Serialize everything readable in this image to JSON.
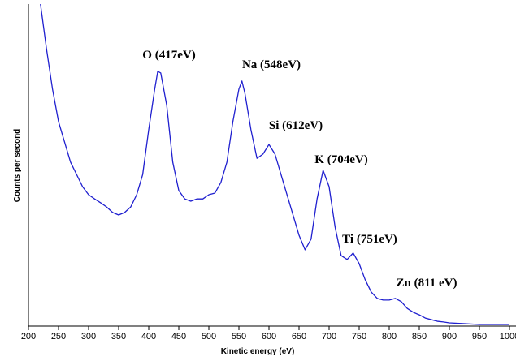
{
  "chart_data": {
    "type": "line",
    "xlabel": "Kinetic energy (eV)",
    "ylabel": "Counts per second",
    "x": [
      220,
      230,
      240,
      250,
      260,
      270,
      280,
      290,
      300,
      310,
      320,
      330,
      340,
      350,
      360,
      370,
      380,
      390,
      400,
      410,
      415,
      420,
      430,
      440,
      450,
      460,
      470,
      480,
      490,
      500,
      510,
      520,
      530,
      540,
      550,
      555,
      560,
      570,
      580,
      590,
      600,
      610,
      620,
      630,
      640,
      650,
      660,
      670,
      680,
      690,
      700,
      710,
      720,
      730,
      740,
      750,
      760,
      770,
      780,
      790,
      800,
      810,
      820,
      830,
      840,
      850,
      860,
      870,
      880,
      890,
      900,
      920,
      950,
      1000
    ],
    "series": [
      {
        "color": "#1f1fcf",
        "values": [
          100,
          86.1,
          73.6,
          63.5,
          57.2,
          50.9,
          47.1,
          43.3,
          40.8,
          39.5,
          38.3,
          37.0,
          35.3,
          34.5,
          35.3,
          37.0,
          40.8,
          47.1,
          61.0,
          73.6,
          79.1,
          78.6,
          68.5,
          50.9,
          42.1,
          39.5,
          38.8,
          39.5,
          39.5,
          40.8,
          41.3,
          44.6,
          50.9,
          63.5,
          73.6,
          76.1,
          72.3,
          61.0,
          52.1,
          53.4,
          56.4,
          53.4,
          47.1,
          40.8,
          34.5,
          28.2,
          23.7,
          27.0,
          39.5,
          48.4,
          43.3,
          30.7,
          21.9,
          20.7,
          22.7,
          19.4,
          14.4,
          10.6,
          8.6,
          8.1,
          8.1,
          8.6,
          7.6,
          5.5,
          4.3,
          3.5,
          2.5,
          2.0,
          1.5,
          1.3,
          1.0,
          0.8,
          0.5,
          0.5
        ]
      }
    ],
    "xlim": [
      200,
      1000
    ],
    "xticks": [
      200,
      250,
      300,
      350,
      400,
      450,
      500,
      550,
      600,
      650,
      700,
      750,
      800,
      850,
      900,
      950,
      1000
    ],
    "ylim": [
      0,
      100
    ],
    "annotations": [
      "O (417eV)",
      "Na (548eV)",
      "Si (612eV)",
      "K (704eV)",
      "Ti (751eV)",
      "Zn (811 eV)"
    ]
  }
}
